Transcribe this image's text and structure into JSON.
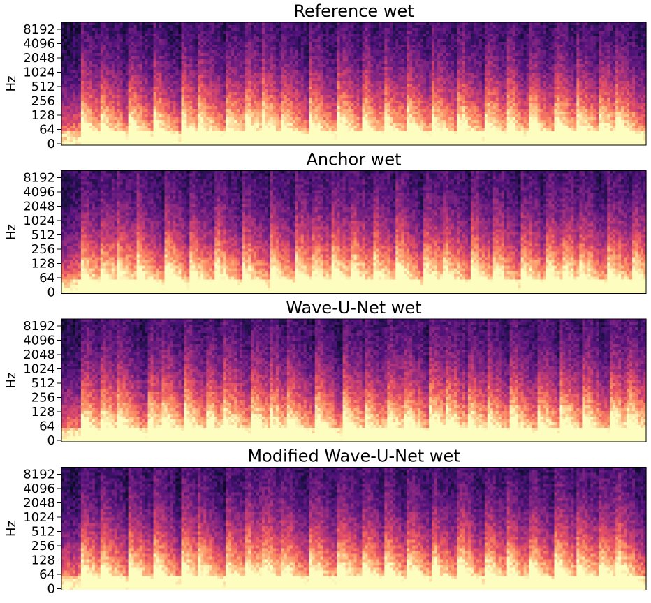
{
  "chart_data": [
    {
      "type": "heatmap",
      "title": "Reference wet",
      "ylabel": "Hz",
      "yscale": "log",
      "yticks": [
        0,
        64,
        128,
        256,
        512,
        1024,
        2048,
        4096,
        8192
      ],
      "yticklabels": [
        "0",
        "64",
        "128",
        "256",
        "512",
        "1024",
        "2048",
        "4096",
        "8192"
      ],
      "xticks": [],
      "colormap": "magma",
      "grid": false
    },
    {
      "type": "heatmap",
      "title": "Anchor wet",
      "ylabel": "Hz",
      "yscale": "log",
      "yticks": [
        0,
        64,
        128,
        256,
        512,
        1024,
        2048,
        4096,
        8192
      ],
      "yticklabels": [
        "0",
        "64",
        "128",
        "256",
        "512",
        "1024",
        "2048",
        "4096",
        "8192"
      ],
      "xticks": [],
      "colormap": "magma",
      "grid": false
    },
    {
      "type": "heatmap",
      "title": "Wave-U-Net wet",
      "ylabel": "Hz",
      "yscale": "log",
      "yticks": [
        0,
        64,
        128,
        256,
        512,
        1024,
        2048,
        4096,
        8192
      ],
      "yticklabels": [
        "0",
        "64",
        "128",
        "256",
        "512",
        "1024",
        "2048",
        "4096",
        "8192"
      ],
      "xticks": [],
      "colormap": "magma",
      "grid": false
    },
    {
      "type": "heatmap",
      "title": "Modified Wave-U-Net wet",
      "ylabel": "Hz",
      "yscale": "log",
      "yticks": [
        0,
        64,
        128,
        256,
        512,
        1024,
        2048,
        4096,
        8192
      ],
      "yticklabels": [
        "0",
        "64",
        "128",
        "256",
        "512",
        "1024",
        "2048",
        "4096",
        "8192"
      ],
      "xticks": [],
      "colormap": "magma",
      "grid": false
    }
  ],
  "colors": {
    "magma_low": "#000004",
    "magma_dark_purple": "#2c115f",
    "magma_purple": "#721f81",
    "magma_magenta": "#b73779",
    "magma_red": "#f1605d",
    "magma_orange": "#feb078",
    "magma_high": "#fcfdbf"
  }
}
